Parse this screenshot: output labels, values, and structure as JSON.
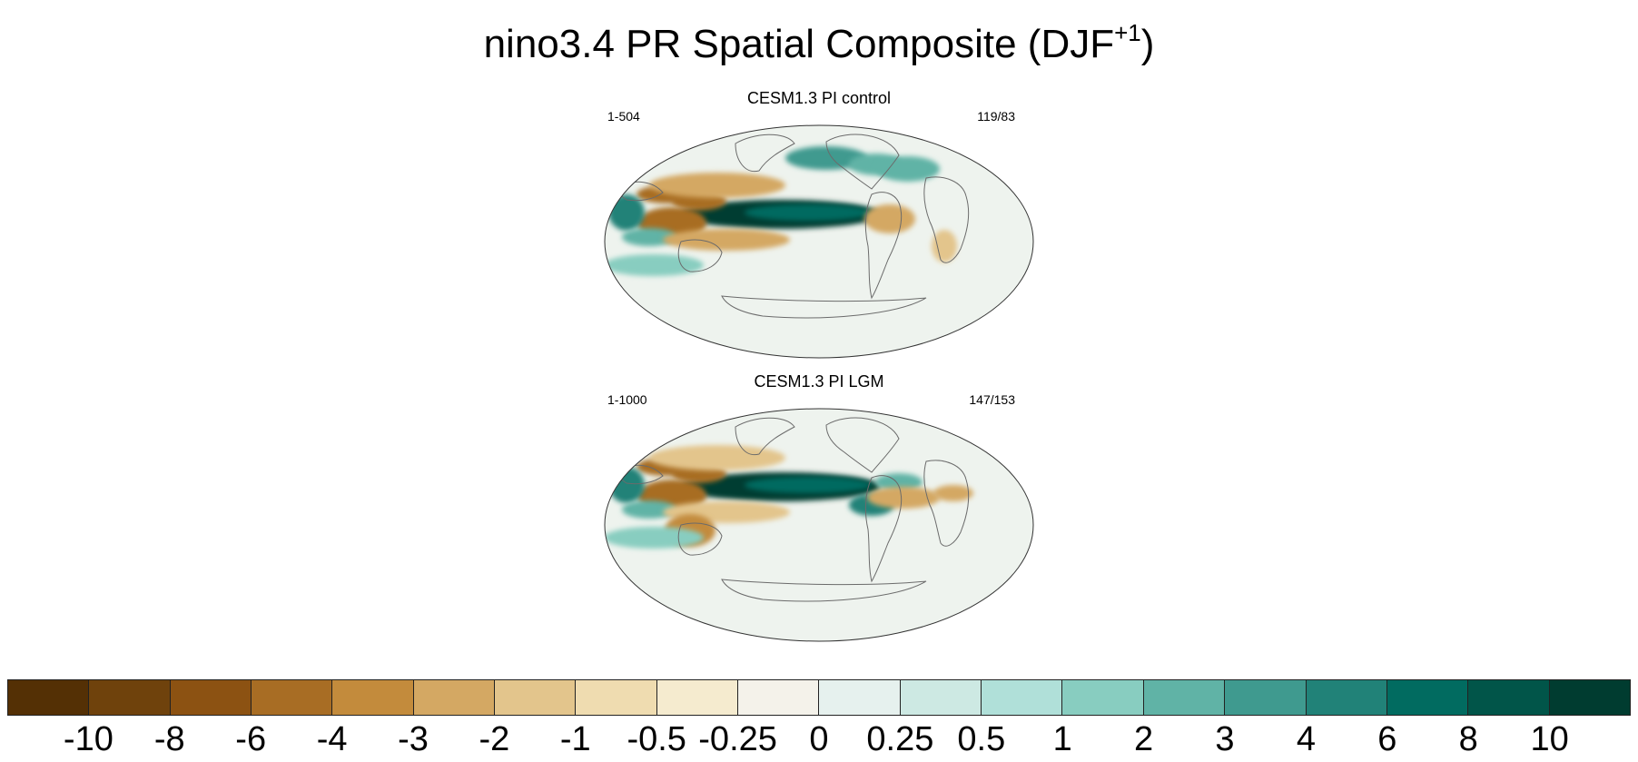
{
  "title": {
    "main": "nino3.4 PR Spatial Composite (DJF",
    "superscript": "+1",
    "close": ")"
  },
  "panels": [
    {
      "title": "CESM1.3 PI control",
      "left_label": "1-504",
      "right_label": "119/83",
      "map": {
        "projection": "robinson",
        "central_longitude": 180,
        "colors": {
          "ocean_base": "#eef3ee",
          "coastline": "#6b6b6b",
          "frame": "#333333"
        },
        "anomalies": [
          {
            "region": "equatorial central Pacific",
            "level": 10
          },
          {
            "region": "Maritime Continent / Indonesia",
            "level": -6
          },
          {
            "region": "western Indian Ocean",
            "level": 4
          },
          {
            "region": "north-west Pacific subtropics",
            "level": -3
          },
          {
            "region": "South Pacific Convergence Zone",
            "level": -3
          },
          {
            "region": "north-east Pacific",
            "level": 3
          },
          {
            "region": "north-west Atlantic",
            "level": 2
          },
          {
            "region": "Amazon / northern South America",
            "level": -3
          },
          {
            "region": "southern Africa",
            "level": -2
          },
          {
            "region": "southern Indian Ocean",
            "level": 1
          }
        ]
      }
    },
    {
      "title": "CESM1.3 PI LGM",
      "left_label": "1-1000",
      "right_label": "147/153",
      "map": {
        "projection": "robinson",
        "central_longitude": 180,
        "colors": {
          "ocean_base": "#eef3ee",
          "coastline": "#6b6b6b",
          "frame": "#333333"
        },
        "anomalies": [
          {
            "region": "equatorial central Pacific",
            "level": 10
          },
          {
            "region": "Maritime Continent / Indonesia",
            "level": -6
          },
          {
            "region": "western Indian Ocean",
            "level": 4
          },
          {
            "region": "north-west Pacific subtropics",
            "level": -2
          },
          {
            "region": "South Pacific Convergence Zone",
            "level": -2
          },
          {
            "region": "northern Australia",
            "level": -4
          },
          {
            "region": "equatorial eastern Pacific",
            "level": 4
          },
          {
            "region": "northern South America / Atlantic",
            "level": -3
          },
          {
            "region": "southern Indian Ocean",
            "level": 1
          }
        ]
      }
    }
  ],
  "colorbar": {
    "labels": [
      "-10",
      "-8",
      "-6",
      "-4",
      "-3",
      "-2",
      "-1",
      "-0.5",
      "-0.25",
      "0",
      "0.25",
      "0.5",
      "1",
      "2",
      "3",
      "4",
      "6",
      "8",
      "10"
    ],
    "colors": [
      "#543005",
      "#6f420c",
      "#8c5212",
      "#a86d24",
      "#c38b3c",
      "#d4a863",
      "#e3c58c",
      "#efdcb0",
      "#f5ebcf",
      "#f4f2ea",
      "#e6f1ee",
      "#cde9e3",
      "#b0e0d9",
      "#88cdc0",
      "#60b3a6",
      "#3f9a8f",
      "#218278",
      "#016b60",
      "#015549",
      "#003c30"
    ]
  }
}
